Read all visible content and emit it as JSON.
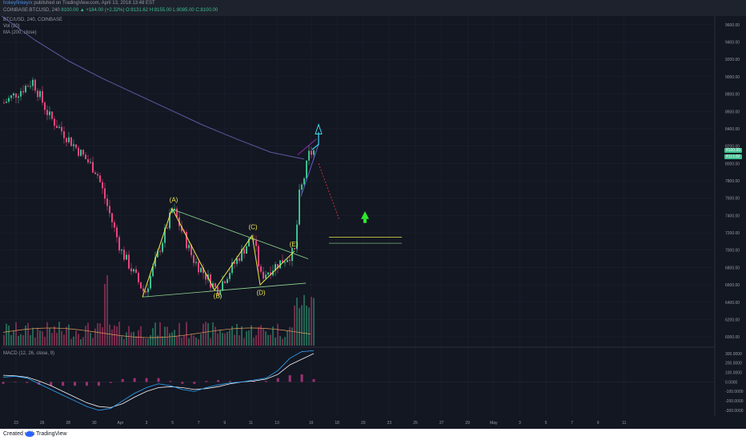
{
  "header": {
    "author": "hokeyfinkeyrx",
    "published": "published on TradingView.com, April 13, 2018 13:48 EST",
    "symbol_line": "COINBASE:BTCUSD, 240",
    "ohlc": "8100.00 ▲ +184.00 (+2.32%) O:8131.62 H:8155.00 L:8085.00 C:8100.00"
  },
  "legends": {
    "symbol": "BTC/USD, 240, COINBASE",
    "vol": "Vol (20)",
    "ma": "MA (200, close)",
    "macd": "MACD (12, 26, close, 9)"
  },
  "price_badges": {
    "last": "8100.00",
    "ma": "8113.82"
  },
  "footer": {
    "created": "Created with",
    "brand": "TradingView"
  },
  "colors": {
    "background": "#131722",
    "up": "#3dbf8f",
    "down": "#e8457d",
    "pattern": "#f0e44c",
    "triangle": "#8fd68f",
    "ma": "#5a5aa0",
    "arrow_cyan": "#40d8f0",
    "arrow_green": "#2ee82e",
    "macd_line": "#2ea8ff",
    "signal_line": "#f5f5f5",
    "hist": "#c1388a",
    "channel": "#9c27b0"
  },
  "chart_data": {
    "type": "candlestick",
    "title": "BTC/USD, 240, COINBASE",
    "interval": "240",
    "price_axis": [
      "9600.00",
      "9400.00",
      "9200.00",
      "9000.00",
      "8800.00",
      "8600.00",
      "8400.00",
      "8200.00",
      "8000.00",
      "7800.00",
      "7600.00",
      "7400.00",
      "7200.00",
      "7000.00",
      "6800.00",
      "6600.00",
      "6400.00",
      "6200.00",
      "6000.00"
    ],
    "macd_axis": [
      "300.0000",
      "200.0000",
      "100.0000",
      "0.0000",
      "-100.0000",
      "-200.0000",
      "-300.0000"
    ],
    "time_axis": [
      "23",
      "26",
      "28",
      "30",
      "Apr",
      "3",
      "5",
      "7",
      "9",
      "11",
      "13",
      "16",
      "18",
      "20",
      "23",
      "25",
      "27",
      "29",
      "May",
      "3",
      "5",
      "7",
      "9",
      "11"
    ],
    "ylim": [
      5900,
      9700
    ],
    "ma200": [
      9700,
      9420,
      9180,
      8980,
      8800,
      8620,
      8440,
      8280,
      8130,
      8050
    ],
    "wave_labels": [
      {
        "label": "(A)",
        "price": 7480
      },
      {
        "label": "(B)",
        "price": 6540
      },
      {
        "label": "(C)",
        "price": 7170
      },
      {
        "label": "(D)",
        "price": 6580
      },
      {
        "label": "(E)",
        "price": 6990
      }
    ],
    "targets": [
      7150,
      7080
    ],
    "macd_line": [
      50,
      60,
      40,
      -20,
      -80,
      -140,
      -200,
      -260,
      -300,
      -280,
      -200,
      -120,
      -60,
      -20,
      -40,
      -80,
      -100,
      -60,
      -30,
      -10,
      0,
      20,
      40,
      120,
      250,
      320,
      330
    ],
    "signal_line": [
      70,
      65,
      50,
      10,
      -40,
      -100,
      -160,
      -220,
      -260,
      -270,
      -230,
      -160,
      -100,
      -60,
      -50,
      -60,
      -80,
      -70,
      -50,
      -20,
      0,
      10,
      30,
      80,
      180,
      240,
      300
    ],
    "histogram": [
      -20,
      -5,
      -10,
      -30,
      -40,
      -40,
      -40,
      -40,
      -40,
      -10,
      30,
      40,
      40,
      40,
      10,
      -20,
      -20,
      10,
      20,
      10,
      0,
      10,
      10,
      40,
      70,
      80,
      30
    ]
  }
}
